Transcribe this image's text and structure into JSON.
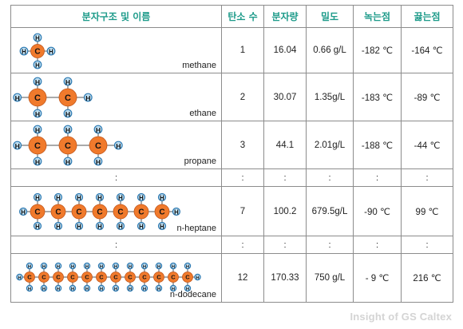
{
  "headers": [
    "분자구조 및 이름",
    "탄소 수",
    "분자량",
    "밀도",
    "녹는점",
    "끓는점"
  ],
  "rows": [
    {
      "name": "methane",
      "carbon_count": "1",
      "molecular_weight": "16.04",
      "density": "0.66 g/L",
      "melting_point": "-182 ℃",
      "boiling_point": "-164 ℃",
      "carbons": 1
    },
    {
      "name": "ethane",
      "carbon_count": "2",
      "molecular_weight": "30.07",
      "density": "1.35g/L",
      "melting_point": "-183 ℃",
      "boiling_point": "-89 ℃",
      "carbons": 2
    },
    {
      "name": "propane",
      "carbon_count": "3",
      "molecular_weight": "44.1",
      "density": "2.01g/L",
      "melting_point": "-188 ℃",
      "boiling_point": "-44 ℃",
      "carbons": 3
    },
    {
      "name": "n-heptane",
      "carbon_count": "7",
      "molecular_weight": "100.2",
      "density": "679.5g/L",
      "melting_point": "-90 ℃",
      "boiling_point": "99 ℃",
      "carbons": 7
    },
    {
      "name": "n-dodecane",
      "carbon_count": "12",
      "molecular_weight": "170.33",
      "density": "750 g/L",
      "melting_point": "- 9 ℃",
      "boiling_point": "216 ℃",
      "carbons": 12
    }
  ],
  "ellipsis": ":",
  "atom_labels": {
    "carbon": "C",
    "hydrogen": "H"
  },
  "colors": {
    "header_text": "#1e9b8a",
    "carbon_fill": "#f07a2c",
    "hydrogen_fill": "#bfe0f4",
    "hydrogen_stroke": "#2b78b0",
    "border": "#8c8c8c"
  },
  "watermark": "Insight of GS Caltex"
}
